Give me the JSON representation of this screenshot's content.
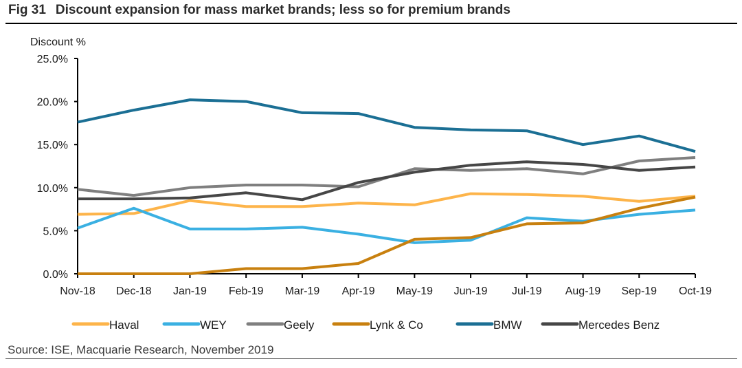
{
  "header": {
    "fig_number": "Fig 31",
    "title": "Discount expansion for mass market brands; less so for premium brands"
  },
  "source": "Source: ISE, Macquarie Research, November 2019",
  "chart_data": {
    "type": "line",
    "title": "Discount expansion for mass market brands; less so for premium brands",
    "xlabel": "",
    "ylabel": "Discount %",
    "ylim": [
      0,
      25
    ],
    "yticks": [
      0,
      5,
      10,
      15,
      20,
      25
    ],
    "ytick_labels": [
      "0.0%",
      "5.0%",
      "10.0%",
      "15.0%",
      "20.0%",
      "25.0%"
    ],
    "grid": false,
    "legend_position": "bottom",
    "categories": [
      "Nov-18",
      "Dec-18",
      "Jan-19",
      "Feb-19",
      "Mar-19",
      "Apr-19",
      "May-19",
      "Jun-19",
      "Jul-19",
      "Aug-19",
      "Sep-19",
      "Oct-19"
    ],
    "series": [
      {
        "name": "Haval",
        "color": "#FDB44A",
        "values": [
          6.9,
          7.0,
          8.5,
          7.8,
          7.8,
          8.2,
          8.0,
          9.3,
          9.2,
          9.0,
          8.4,
          9.0
        ]
      },
      {
        "name": "WEY",
        "color": "#3AB0E2",
        "values": [
          5.3,
          7.6,
          5.2,
          5.2,
          5.4,
          4.6,
          3.6,
          3.9,
          6.5,
          6.1,
          6.9,
          7.4
        ]
      },
      {
        "name": "Geely",
        "color": "#7F7F7F",
        "values": [
          9.8,
          9.1,
          10.0,
          10.3,
          10.3,
          10.1,
          12.2,
          12.0,
          12.2,
          11.6,
          13.1,
          13.5
        ]
      },
      {
        "name": "Lynk & Co",
        "color": "#C8800F",
        "values": [
          0.0,
          0.0,
          0.0,
          0.6,
          0.6,
          1.2,
          4.0,
          4.2,
          5.8,
          5.9,
          7.6,
          8.9
        ]
      },
      {
        "name": "BMW",
        "color": "#1B6F94",
        "values": [
          17.6,
          19.0,
          20.2,
          20.0,
          18.7,
          18.6,
          17.0,
          16.7,
          16.6,
          15.0,
          16.0,
          14.2
        ]
      },
      {
        "name": "Mercedes Benz",
        "color": "#464646",
        "values": [
          8.7,
          8.7,
          8.8,
          9.4,
          8.6,
          10.6,
          11.8,
          12.6,
          13.0,
          12.7,
          12.0,
          12.4
        ]
      }
    ]
  }
}
